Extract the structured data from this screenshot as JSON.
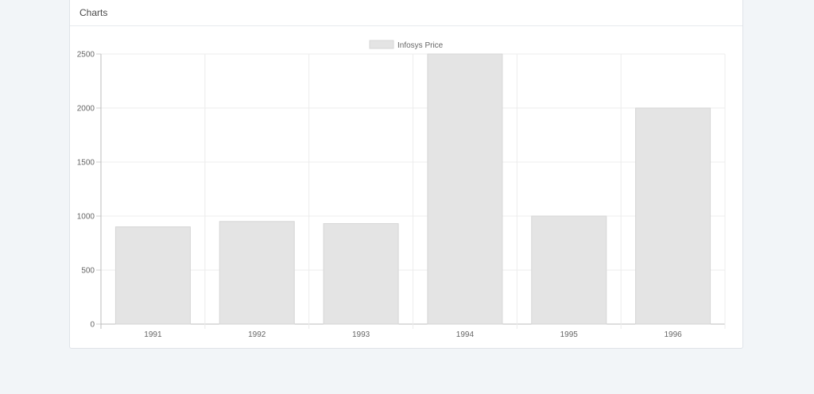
{
  "header": {
    "title": "Charts"
  },
  "chart_data": {
    "type": "bar",
    "categories": [
      "1991",
      "1992",
      "1993",
      "1994",
      "1995",
      "1996"
    ],
    "series": [
      {
        "name": "Infosys Price",
        "values": [
          900,
          950,
          930,
          2500,
          1000,
          2000
        ],
        "color": "#e4e4e4",
        "border_color": "#d6d6d6"
      }
    ],
    "title": "",
    "xlabel": "",
    "ylabel": "",
    "ylim": [
      0,
      2500
    ],
    "yticks": [
      "0",
      "500",
      "1000",
      "1500",
      "2000",
      "2500"
    ],
    "grid": true,
    "legend": "top"
  }
}
